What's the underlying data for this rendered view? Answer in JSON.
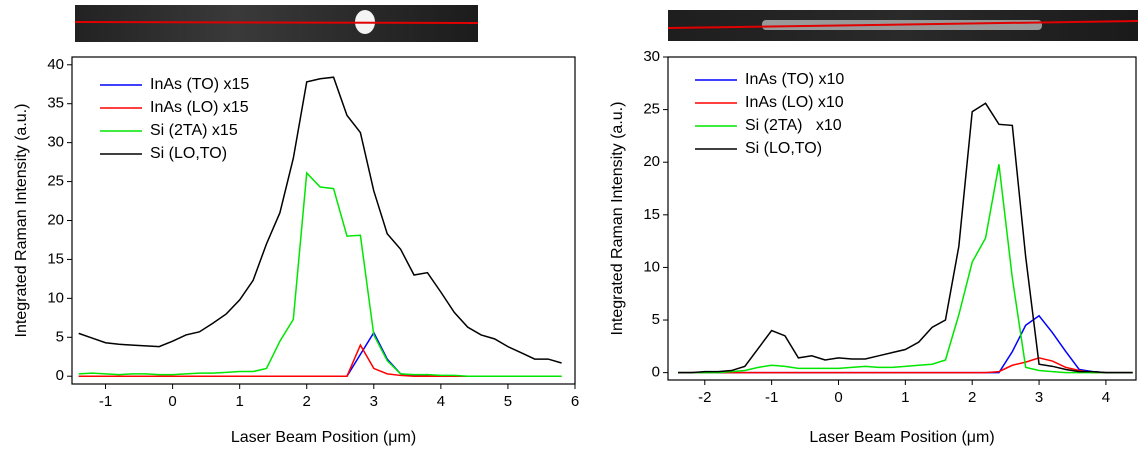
{
  "chart_data": [
    {
      "type": "line",
      "xlabel": "Laser Beam Position (μm)",
      "ylabel": "Integrated Raman Intensity (a.u.)",
      "legend": "upper left",
      "x": [
        -1.4,
        -1.2,
        -1,
        -0.8,
        -0.6,
        -0.4,
        -0.2,
        0,
        0.2,
        0.4,
        0.6,
        0.8,
        1,
        1.2,
        1.4,
        1.6,
        1.8,
        2,
        2.2,
        2.4,
        2.6,
        2.8,
        3,
        3.2,
        3.4,
        3.6,
        3.8,
        4,
        4.2,
        4.4,
        4.6,
        4.8,
        5,
        5.2,
        5.4,
        5.6,
        5.8
      ],
      "series": [
        {
          "name": "InAs (TO) x15",
          "color": "#0000ff",
          "values": [
            0,
            0,
            0,
            0,
            0,
            0,
            0,
            0,
            0,
            0,
            0,
            0,
            0,
            0,
            0,
            0,
            0,
            0,
            0,
            0,
            0,
            2.8,
            5.6,
            2.2,
            0.3,
            0.1,
            0.2,
            0,
            0,
            0,
            0,
            0,
            0,
            0,
            0,
            0,
            0
          ]
        },
        {
          "name": "InAs (LO) x15",
          "color": "#ff0000",
          "values": [
            0,
            0,
            0,
            0,
            0,
            0,
            0,
            0,
            0,
            0,
            0,
            0,
            0,
            0,
            0,
            0,
            0,
            0,
            0,
            0,
            0,
            4,
            1,
            0.3,
            0.1,
            0,
            0,
            0,
            0,
            0,
            0,
            0,
            0,
            0,
            0,
            0,
            0
          ]
        },
        {
          "name": "Si (2TA) x15",
          "color": "#00e600",
          "values": [
            0.3,
            0.4,
            0.3,
            0.2,
            0.3,
            0.3,
            0.2,
            0.2,
            0.3,
            0.4,
            0.4,
            0.5,
            0.6,
            0.6,
            1,
            4.5,
            7.3,
            26.1,
            24.3,
            24.1,
            18,
            18.1,
            5.3,
            2,
            0.3,
            0.2,
            0.2,
            0.1,
            0.1,
            0,
            0,
            0,
            0,
            0,
            0,
            0,
            0
          ]
        },
        {
          "name": "Si (LO,TO)",
          "color": "#000000",
          "values": [
            5.5,
            4.9,
            4.3,
            4.1,
            4,
            3.9,
            3.8,
            4.5,
            5.3,
            5.7,
            6.8,
            8,
            9.8,
            12.3,
            17,
            21,
            28,
            37.8,
            38.2,
            38.4,
            33.5,
            31.3,
            23.8,
            18.3,
            16.3,
            13,
            13.3,
            10.8,
            8.2,
            6.3,
            5.3,
            4.8,
            3.8,
            3,
            2.2,
            2.2,
            1.7
          ]
        }
      ],
      "xlim": [
        -1.5,
        6
      ],
      "ylim": [
        -1,
        41
      ],
      "xticks": [
        -1,
        0,
        1,
        2,
        3,
        4,
        5,
        6
      ],
      "yticks": [
        0,
        5,
        10,
        15,
        20,
        25,
        30,
        35,
        40
      ]
    },
    {
      "type": "line",
      "xlabel": "Laser Beam Position (μm)",
      "ylabel": "Integrated Raman Intensity (a.u.)",
      "legend": "upper left",
      "x": [
        -2.4,
        -2.2,
        -2,
        -1.8,
        -1.6,
        -1.4,
        -1.2,
        -1,
        -0.8,
        -0.6,
        -0.4,
        -0.2,
        0,
        0.2,
        0.4,
        0.6,
        0.8,
        1,
        1.2,
        1.4,
        1.6,
        1.8,
        2,
        2.2,
        2.4,
        2.6,
        2.8,
        3,
        3.2,
        3.4,
        3.6,
        3.8,
        4,
        4.2,
        4.4
      ],
      "series": [
        {
          "name": "InAs (TO) x10",
          "color": "#0000ff",
          "values": [
            0,
            0,
            0,
            0,
            0,
            0,
            0,
            0,
            0,
            0,
            0,
            0,
            0,
            0,
            0,
            0,
            0,
            0,
            0,
            0,
            0,
            0,
            0,
            0,
            0,
            2,
            4.5,
            5.4,
            3.8,
            2,
            0.3,
            0.1,
            0,
            0,
            0
          ]
        },
        {
          "name": "InAs (LO) x10",
          "color": "#ff0000",
          "values": [
            0,
            0,
            0,
            0,
            0,
            0,
            0,
            0,
            0,
            0,
            0,
            0,
            0,
            0,
            0,
            0,
            0,
            0,
            0,
            0,
            0,
            0,
            0,
            0,
            0.1,
            0.7,
            1,
            1.4,
            1.1,
            0.5,
            0.2,
            0,
            0,
            0,
            0
          ]
        },
        {
          "name": "Si (2TA)   x10",
          "color": "#00e600",
          "values": [
            0,
            0,
            0,
            0,
            0.1,
            0.2,
            0.5,
            0.7,
            0.6,
            0.4,
            0.4,
            0.4,
            0.4,
            0.5,
            0.6,
            0.5,
            0.5,
            0.6,
            0.7,
            0.8,
            1.2,
            5.5,
            10.5,
            12.8,
            19.8,
            9,
            0.5,
            0.2,
            0.1,
            0,
            0,
            0,
            0,
            0,
            0
          ]
        },
        {
          "name": "Si (LO,TO)",
          "color": "#000000",
          "values": [
            0,
            0,
            0.1,
            0.1,
            0.2,
            0.6,
            2.3,
            4,
            3.5,
            1.4,
            1.6,
            1.2,
            1.4,
            1.3,
            1.3,
            1.6,
            1.9,
            2.2,
            2.9,
            4.3,
            5,
            12,
            24.8,
            25.6,
            23.6,
            23.5,
            11,
            0.8,
            0.6,
            0.3,
            0.1,
            0.1,
            0,
            0,
            0
          ]
        }
      ],
      "xlim": [
        -2.55,
        4.45
      ],
      "ylim": [
        -0.7,
        30
      ],
      "xticks": [
        -2,
        -1,
        0,
        1,
        2,
        3,
        4
      ],
      "yticks": [
        0,
        5,
        10,
        15,
        20,
        25,
        30
      ]
    }
  ]
}
